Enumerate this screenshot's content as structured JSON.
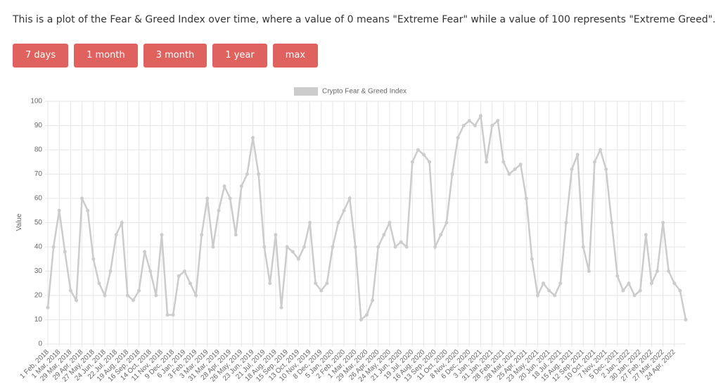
{
  "intro": "This is a plot of the Fear & Greed Index over time, where a value of 0 means \"Extreme Fear\" while a value of 100 represents \"Extreme Greed\".",
  "buttons": [
    "7 days",
    "1 month",
    "3 month",
    "1 year",
    "max"
  ],
  "chart_data": {
    "type": "line",
    "y_label": "Value",
    "ylim": [
      0,
      100
    ],
    "yticks": [
      0,
      10,
      20,
      30,
      40,
      50,
      60,
      70,
      80,
      90,
      100
    ],
    "grid": true,
    "categories": [
      "1 Feb, 2018",
      null,
      "1 Mar, 2018",
      null,
      "29 Mar, 2018",
      null,
      "29 Apr, 2018",
      null,
      "27 May, 2018",
      null,
      "24 Jun, 2018",
      null,
      "22 Jul, 2018",
      null,
      "19 Aug, 2018",
      null,
      "16 Sep, 2018",
      null,
      "14 Oct, 2018",
      null,
      "11 Nov, 2018",
      null,
      "9 Dec, 2018",
      null,
      "6 Jan, 2019",
      null,
      "3 Feb, 2019",
      null,
      "3 Mar, 2019",
      null,
      "31 Mar, 2019",
      null,
      "28 Apr, 2019",
      null,
      "26 May, 2019",
      null,
      "23 Jun, 2019",
      null,
      "21 Jul, 2019",
      null,
      "18 Aug, 2019",
      null,
      "15 Sep, 2019",
      null,
      "13 Oct, 2019",
      null,
      "10 Nov, 2019",
      null,
      "8 Dec, 2019",
      null,
      "5 Jan, 2020",
      null,
      "2 Feb, 2020",
      null,
      "1 Mar, 2020",
      null,
      "29 Mar, 2020",
      null,
      "26 Apr, 2020",
      null,
      "24 May, 2020",
      null,
      "21 Jun, 2020",
      null,
      "19 Jul, 2020",
      null,
      "16 Aug, 2020",
      null,
      "13 Sep, 2020",
      null,
      "11 Oct, 2020",
      null,
      "8 Nov, 2020",
      null,
      "6 Dec, 2020",
      null,
      "3 Jan, 2021",
      null,
      "31 Jan, 2021",
      null,
      "28 Feb, 2021",
      null,
      "28 Mar, 2021",
      null,
      "25 Apr, 2021",
      null,
      "23 May, 2021",
      null,
      "20 Jun, 2021",
      null,
      "18 Jul, 2021",
      null,
      "15 Aug, 2021",
      null,
      "12 Sep, 2021",
      null,
      "10 Oct, 2021",
      null,
      "7 Nov, 2021",
      null,
      "5 Dec, 2021",
      null,
      "2 Jan, 2022",
      null,
      "30 Jan, 2022",
      null,
      "27 Feb, 2022",
      null,
      "27 Mar, 2022",
      null,
      "24 Apr, 2022",
      null,
      null
    ],
    "series": [
      {
        "name": "Crypto Fear & Greed Index",
        "color": "#cccccc",
        "values": [
          15,
          40,
          55,
          38,
          22,
          18,
          60,
          55,
          35,
          25,
          20,
          30,
          45,
          50,
          20,
          18,
          22,
          38,
          30,
          20,
          45,
          12,
          12,
          28,
          30,
          25,
          20,
          45,
          60,
          40,
          55,
          65,
          60,
          45,
          65,
          70,
          85,
          70,
          40,
          25,
          45,
          15,
          40,
          38,
          35,
          40,
          50,
          25,
          22,
          25,
          40,
          50,
          55,
          60,
          40,
          10,
          12,
          18,
          40,
          45,
          50,
          40,
          42,
          40,
          75,
          80,
          78,
          75,
          40,
          45,
          50,
          70,
          85,
          90,
          92,
          90,
          94,
          75,
          90,
          92,
          75,
          70,
          72,
          74,
          60,
          35,
          20,
          25,
          22,
          20,
          25,
          50,
          72,
          78,
          40,
          30,
          75,
          80,
          72,
          50,
          28,
          22,
          25,
          20,
          22,
          45,
          25,
          30,
          50,
          30,
          25,
          22,
          10
        ]
      }
    ]
  }
}
